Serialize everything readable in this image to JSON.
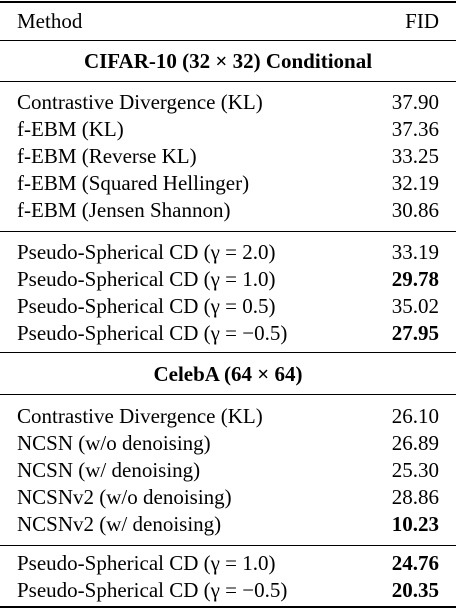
{
  "header": {
    "method": "Method",
    "fid": "FID"
  },
  "sections": [
    {
      "title": "CIFAR-10 (32 × 32) Conditional",
      "groups": [
        [
          {
            "method": "Contrastive Divergence (KL)",
            "fid": "37.90",
            "bold": false
          },
          {
            "method": "f-EBM (KL)",
            "fid": "37.36",
            "bold": false
          },
          {
            "method": "f-EBM (Reverse KL)",
            "fid": "33.25",
            "bold": false
          },
          {
            "method": "f-EBM (Squared Hellinger)",
            "fid": "32.19",
            "bold": false
          },
          {
            "method": "f-EBM (Jensen Shannon)",
            "fid": "30.86",
            "bold": false
          }
        ],
        [
          {
            "method": "Pseudo-Spherical CD (γ = 2.0)",
            "fid": "33.19",
            "bold": false
          },
          {
            "method": "Pseudo-Spherical CD (γ = 1.0)",
            "fid": "29.78",
            "bold": true
          },
          {
            "method": "Pseudo-Spherical CD (γ = 0.5)",
            "fid": "35.02",
            "bold": false
          },
          {
            "method": "Pseudo-Spherical CD (γ = −0.5)",
            "fid": "27.95",
            "bold": true
          }
        ]
      ]
    },
    {
      "title": "CelebA (64 × 64)",
      "groups": [
        [
          {
            "method": "Contrastive Divergence (KL)",
            "fid": "26.10",
            "bold": false
          },
          {
            "method": "NCSN (w/o denoising)",
            "fid": "26.89",
            "bold": false
          },
          {
            "method": "NCSN (w/ denoising)",
            "fid": "25.30",
            "bold": false
          },
          {
            "method": "NCSNv2 (w/o denoising)",
            "fid": "28.86",
            "bold": false
          },
          {
            "method": "NCSNv2 (w/ denoising)",
            "fid": "10.23",
            "bold": true
          }
        ],
        [
          {
            "method": "Pseudo-Spherical CD (γ = 1.0)",
            "fid": "24.76",
            "bold": true
          },
          {
            "method": "Pseudo-Spherical CD (γ = −0.5)",
            "fid": "20.35",
            "bold": true
          }
        ]
      ]
    }
  ]
}
